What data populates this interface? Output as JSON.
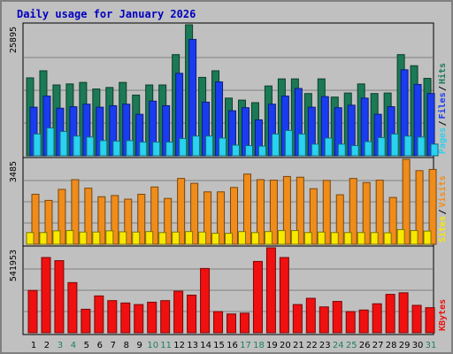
{
  "chart_data": {
    "type": "bar",
    "title": "Daily usage for January 2026",
    "categories": [
      "1",
      "2",
      "3",
      "4",
      "5",
      "6",
      "7",
      "8",
      "9",
      "10",
      "11",
      "12",
      "13",
      "14",
      "15",
      "16",
      "17",
      "18",
      "19",
      "20",
      "21",
      "22",
      "23",
      "24",
      "25",
      "26",
      "27",
      "28",
      "29",
      "30",
      "31"
    ],
    "weekend_days": [
      "3",
      "4",
      "10",
      "11",
      "17",
      "18",
      "24",
      "25",
      "31"
    ],
    "panels": [
      {
        "name": "hits-files-pages",
        "ylim": [
          0,
          25895
        ],
        "max_label": "25895",
        "right_labels": [
          "Pages",
          "Files",
          "Hits"
        ],
        "series": [
          {
            "name": "Hits",
            "color": "#1b7a55",
            "values": [
              15400,
              16800,
              14000,
              14200,
              14500,
              13200,
              13500,
              14500,
              12000,
              14000,
              14000,
              20000,
              25895,
              15500,
              16800,
              11400,
              11000,
              10500,
              13800,
              15200,
              15200,
              12300,
              15200,
              11600,
              12400,
              14200,
              12300,
              12400,
              20000,
              17800,
              15300
            ]
          },
          {
            "name": "Files",
            "color": "#1a3cf0",
            "values": [
              9600,
              11800,
              9400,
              9700,
              10200,
              9600,
              9900,
              10200,
              8200,
              10800,
              9900,
              16300,
              23000,
              10600,
              14600,
              8900,
              9500,
              7100,
              10200,
              11800,
              13300,
              9600,
              11700,
              9500,
              10000,
              11400,
              8200,
              9700,
              17000,
              14100,
              12300
            ]
          },
          {
            "name": "Pages",
            "color": "#2ad1f0",
            "values": [
              4300,
              5500,
              4800,
              3900,
              3700,
              3000,
              2900,
              3000,
              2700,
              2700,
              2700,
              3400,
              3900,
              3900,
              3500,
              2100,
              2000,
              1900,
              4300,
              5000,
              4300,
              2300,
              3500,
              2300,
              2000,
              2800,
              3600,
              4300,
              3900,
              3700,
              2300
            ]
          }
        ]
      },
      {
        "name": "sites-visits",
        "ylim": [
          0,
          3485
        ],
        "max_label": "3485",
        "right_labels": [
          "Sites",
          "Visits"
        ],
        "series": [
          {
            "name": "Visits",
            "color": "#f08c1a",
            "values": [
              2050,
              1800,
              2250,
              2650,
              2300,
              1950,
              2000,
              1850,
              2050,
              2350,
              1880,
              2700,
              2500,
              2150,
              2150,
              2330,
              2880,
              2650,
              2630,
              2780,
              2750,
              2280,
              2620,
              2030,
              2700,
              2530,
              2630,
              1920,
              3485,
              3020,
              3070
            ]
          },
          {
            "name": "Sites",
            "color": "#f8e800",
            "values": [
              480,
              480,
              550,
              560,
              500,
              500,
              550,
              510,
              500,
              520,
              480,
              500,
              520,
              500,
              450,
              450,
              520,
              480,
              520,
              560,
              560,
              480,
              500,
              480,
              480,
              480,
              480,
              470,
              600,
              560,
              540
            ]
          }
        ]
      },
      {
        "name": "kbytes",
        "ylim": [
          0,
          541953
        ],
        "max_label": "541953",
        "right_labels": [
          "KBytes"
        ],
        "series": [
          {
            "name": "KBytes",
            "color": "#f01010",
            "values": [
              270000,
              480000,
              460000,
              320000,
              150000,
              235000,
              205000,
              190000,
              180000,
              195000,
              205000,
              265000,
              240000,
              410000,
              135000,
              120000,
              125000,
              455000,
              541953,
              480000,
              180000,
              220000,
              165000,
              200000,
              135000,
              145000,
              185000,
              245000,
              255000,
              175000,
              160000
            ]
          }
        ]
      }
    ]
  }
}
